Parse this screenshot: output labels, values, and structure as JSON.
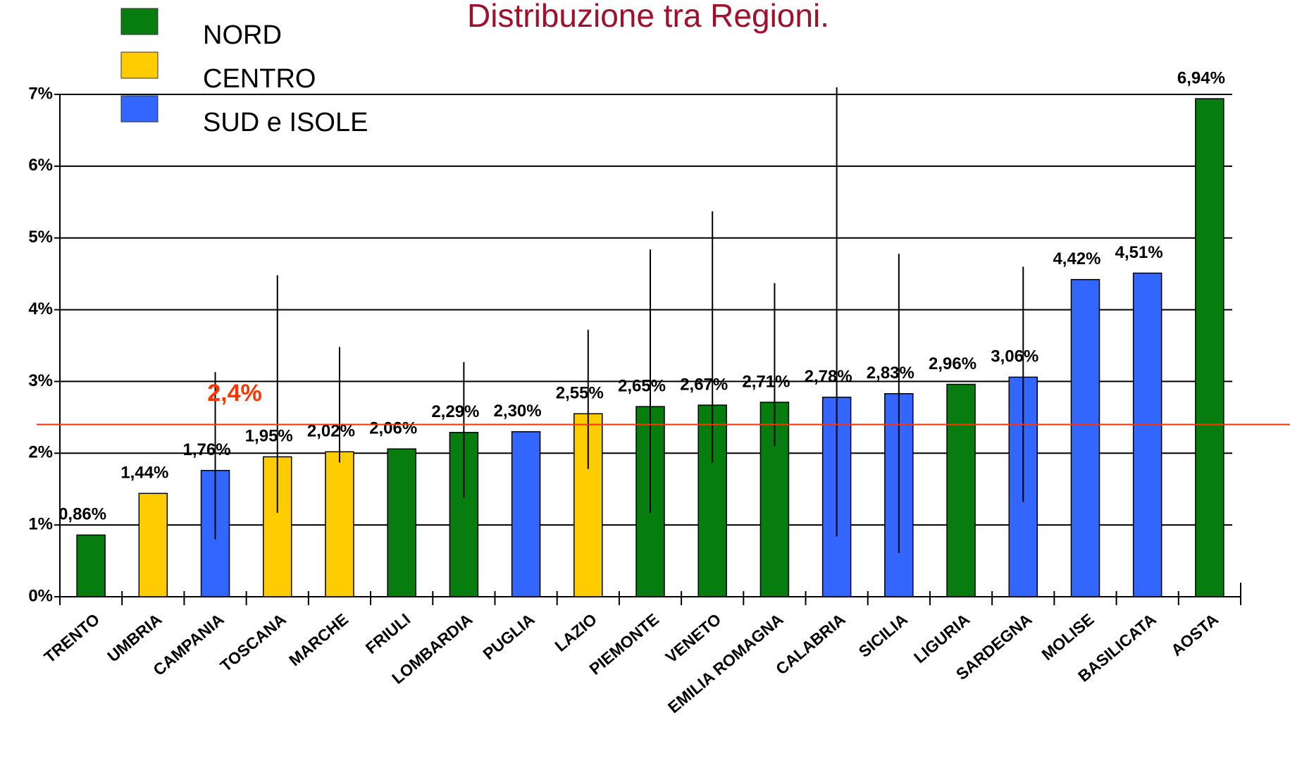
{
  "chart_data": {
    "type": "bar",
    "title": "Distribuzione tra Regioni.",
    "legend": [
      {
        "name": "NORD",
        "color": "#087d0f"
      },
      {
        "name": "CENTRO",
        "color": "#ffcc00"
      },
      {
        "name": "SUD e ISOLE",
        "color": "#3366ff"
      }
    ],
    "categories": [
      "TRENTO",
      "UMBRIA",
      "CAMPANIA",
      "TOSCANA",
      "MARCHE",
      "FRIULI",
      "LOMBARDIA",
      "PUGLIA",
      "LAZIO",
      "PIEMONTE",
      "VENETO",
      "EMILIA ROMAGNA",
      "CALABRIA",
      "SICILIA",
      "LIGURIA",
      "SARDEGNA",
      "MOLISE",
      "BASILICATA",
      "AOSTA"
    ],
    "groups": [
      0,
      1,
      2,
      1,
      1,
      0,
      0,
      2,
      1,
      0,
      0,
      0,
      2,
      2,
      0,
      2,
      2,
      2,
      0
    ],
    "values": [
      0.86,
      1.44,
      1.76,
      1.95,
      2.02,
      2.06,
      2.29,
      2.3,
      2.55,
      2.65,
      2.67,
      2.71,
      2.78,
      2.83,
      2.96,
      3.06,
      4.42,
      4.51,
      6.94
    ],
    "value_labels": [
      "0,86%",
      "1,44%",
      "1,76%",
      "1,95%",
      "2,02%",
      "2,06%",
      "2,29%",
      "2,30%",
      "2,55%",
      "2,65%",
      "2,67%",
      "2,71%",
      "2,78%",
      "2,83%",
      "2,96%",
      "3,06%",
      "4,42%",
      "4,51%",
      "6,94%"
    ],
    "error_bars": [
      null,
      null,
      [
        0.8,
        3.13
      ],
      [
        1.17,
        4.48
      ],
      [
        1.87,
        3.48
      ],
      null,
      [
        1.38,
        3.27
      ],
      null,
      [
        1.78,
        3.72
      ],
      [
        1.17,
        4.84
      ],
      [
        1.87,
        5.37
      ],
      [
        2.1,
        4.37
      ],
      [
        0.84,
        7.1
      ],
      [
        0.61,
        4.78
      ],
      null,
      [
        1.32,
        4.6
      ],
      null,
      null,
      null
    ],
    "reference_line": {
      "value": 2.4,
      "label": "2,4%",
      "color": "#ff3300"
    },
    "ylim": [
      0,
      7
    ],
    "yticks": [
      {
        "value": 0,
        "label": "0%"
      },
      {
        "value": 1,
        "label": "1%"
      },
      {
        "value": 2,
        "label": "2%"
      },
      {
        "value": 3,
        "label": "3%"
      },
      {
        "value": 4,
        "label": "4%"
      },
      {
        "value": 5,
        "label": "5%"
      },
      {
        "value": 6,
        "label": "6%"
      },
      {
        "value": 7,
        "label": "7%"
      }
    ],
    "grid": true
  }
}
